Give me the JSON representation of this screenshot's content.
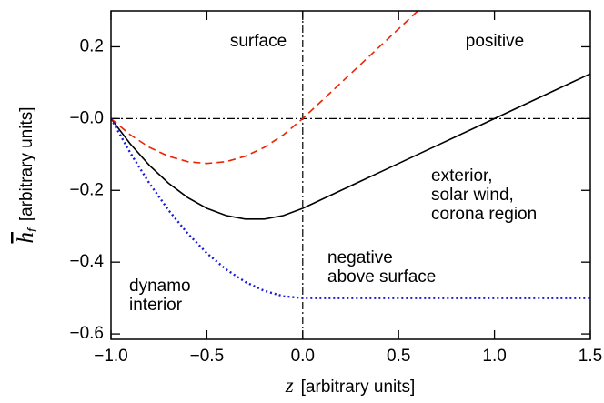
{
  "chart_data": {
    "type": "line",
    "xlabel_symbol": "z",
    "xlabel_units": "[arbitrary units]",
    "ylabel_symbol": "h",
    "ylabel_subscript": "f",
    "ylabel_units": "[arbitrary units]",
    "x": [
      -1.0,
      -0.9,
      -0.8,
      -0.7,
      -0.6,
      -0.5,
      -0.4,
      -0.3,
      -0.2,
      -0.1,
      0.0,
      0.1,
      0.2,
      0.3,
      0.4,
      0.5,
      0.6,
      0.7,
      0.8,
      0.9,
      1.0,
      1.1,
      1.2,
      1.3,
      1.4,
      1.5
    ],
    "series": [
      {
        "color": "#000000",
        "dash": "solid",
        "values": [
          0,
          -0.07,
          -0.13,
          -0.18,
          -0.22,
          -0.25,
          -0.27,
          -0.28,
          -0.28,
          -0.27,
          -0.25,
          -0.225,
          -0.2,
          -0.175,
          -0.15,
          -0.125,
          -0.1,
          -0.075,
          -0.05,
          -0.025,
          0,
          0.025,
          0.05,
          0.075,
          0.1,
          0.125
        ]
      },
      {
        "color": "#ee2200",
        "dash": "dashed",
        "values": [
          0,
          -0.045,
          -0.08,
          -0.105,
          -0.12,
          -0.125,
          -0.12,
          -0.105,
          -0.08,
          -0.045,
          0,
          0.05,
          0.1,
          0.15,
          0.2,
          0.25,
          0.3,
          null,
          null,
          null,
          null,
          null,
          null,
          null,
          null,
          null
        ]
      },
      {
        "color": "#1a1adc",
        "dash": "dotted",
        "values": [
          0,
          -0.095,
          -0.18,
          -0.255,
          -0.32,
          -0.375,
          -0.42,
          -0.455,
          -0.48,
          -0.495,
          -0.5,
          -0.5,
          -0.5,
          -0.5,
          -0.5,
          -0.5,
          -0.5,
          -0.5,
          -0.5,
          -0.5,
          -0.5,
          -0.5,
          -0.5,
          -0.5,
          -0.5,
          -0.5
        ]
      }
    ],
    "xlim": [
      -1.0,
      1.5
    ],
    "ylim": [
      -0.615,
      0.3
    ],
    "xticks": [
      {
        "value": -1.0,
        "label": "−1.0"
      },
      {
        "value": -0.5,
        "label": "−0.5"
      },
      {
        "value": 0.0,
        "label": "0.0"
      },
      {
        "value": 0.5,
        "label": "0.5"
      },
      {
        "value": 1.0,
        "label": "1.0"
      },
      {
        "value": 1.5,
        "label": "1.5"
      }
    ],
    "yticks": [
      {
        "value": -0.6,
        "label": "−0.6"
      },
      {
        "value": -0.4,
        "label": "−0.4"
      },
      {
        "value": -0.2,
        "label": "−0.2"
      },
      {
        "value": 0,
        "label": "−0.0"
      },
      0.2
    ],
    "hlines": [
      0
    ],
    "vlines": [
      0
    ],
    "annotations": [
      {
        "lines": [
          "surface"
        ],
        "color": "#000000"
      },
      {
        "lines": [
          "positive"
        ],
        "color": "#ee2200"
      },
      {
        "lines": [
          "exterior,",
          "solar wind,",
          "corona region"
        ],
        "color": "#000000"
      },
      {
        "lines": [
          "negative",
          "above surface"
        ],
        "color": "#1a1adc"
      },
      {
        "lines": [
          "dynamo",
          "interior"
        ],
        "color": "#000000"
      }
    ]
  }
}
